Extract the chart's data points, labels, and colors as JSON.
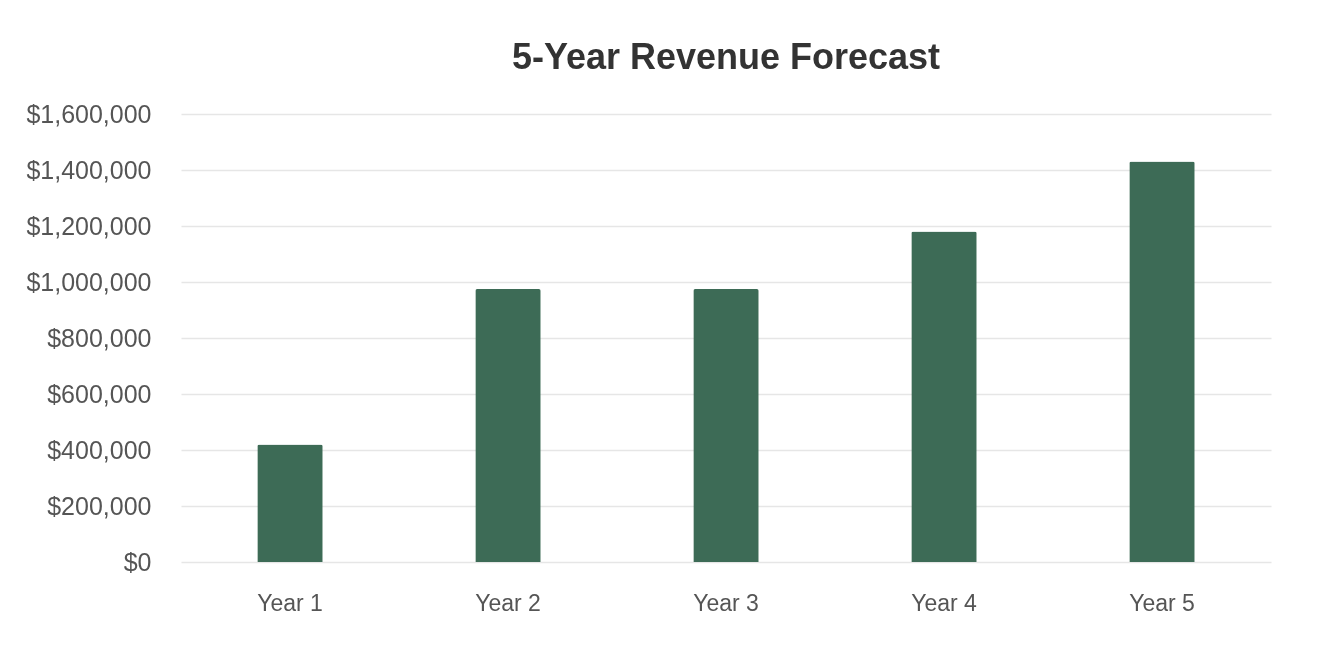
{
  "chart_data": {
    "type": "bar",
    "title": "5-Year Revenue Forecast",
    "categories": [
      "Year 1",
      "Year 2",
      "Year 3",
      "Year 4",
      "Year 5"
    ],
    "values": [
      420000,
      975000,
      975000,
      1180000,
      1430000
    ],
    "color": "#3d6b56",
    "ylim": [
      0,
      1600000
    ],
    "yticks": [
      {
        "value": 0,
        "label": "$0"
      },
      {
        "value": 200000,
        "label": "$200,000"
      },
      {
        "value": 400000,
        "label": "$400,000"
      },
      {
        "value": 600000,
        "label": "$600,000"
      },
      {
        "value": 800000,
        "label": "$800,000"
      },
      {
        "value": 1000000,
        "label": "$1,000,000"
      },
      {
        "value": 1200000,
        "label": "$1,200,000"
      },
      {
        "value": 1400000,
        "label": "$1,400,000"
      },
      {
        "value": 1600000,
        "label": "$1,600,000"
      }
    ],
    "grid": "y"
  }
}
